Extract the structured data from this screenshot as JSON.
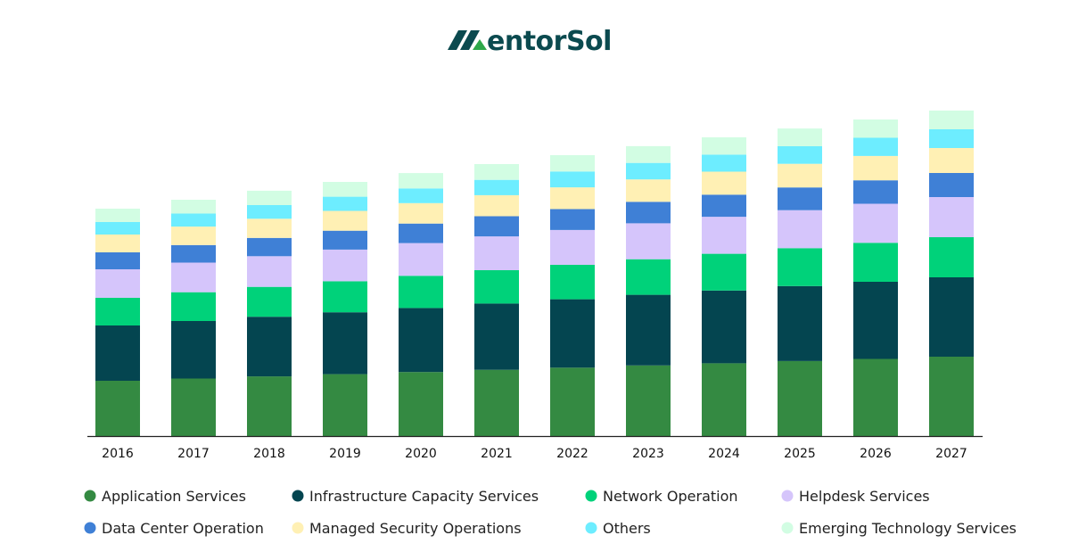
{
  "logo": {
    "text": "MentorSol",
    "display": "entorSol",
    "accent": "#2ea84a",
    "primary": "#0b4a4f"
  },
  "chart_data": {
    "type": "bar",
    "stacked": true,
    "title": "",
    "xlabel": "",
    "ylabel": "",
    "grid": false,
    "legend_position": "bottom",
    "categories": [
      "2016",
      "2017",
      "2018",
      "2019",
      "2020",
      "2021",
      "2022",
      "2023",
      "2024",
      "2025",
      "2026",
      "2027"
    ],
    "series": [
      {
        "name": "Application Services",
        "color": "#348A42",
        "values": [
          62,
          64.5,
          66.9,
          69.4,
          71.8,
          74.3,
          76.7,
          79.2,
          81.6,
          84.1,
          86.5,
          89
        ]
      },
      {
        "name": "Infrastructure Capacity Services",
        "color": "#044550",
        "values": [
          62,
          64.5,
          66.9,
          69.4,
          71.8,
          74.3,
          76.7,
          79.2,
          81.6,
          84.1,
          86.5,
          89
        ]
      },
      {
        "name": "Network Operation",
        "color": "#00D27A",
        "values": [
          31,
          32.3,
          33.5,
          34.8,
          36.1,
          37.4,
          38.6,
          39.9,
          41.2,
          42.5,
          43.7,
          45
        ]
      },
      {
        "name": "Helpdesk Services",
        "color": "#D5C5FB",
        "values": [
          32,
          33.2,
          34.4,
          35.5,
          36.7,
          37.9,
          39.1,
          40.3,
          41.5,
          42.6,
          43.8,
          45
        ]
      },
      {
        "name": "Data Center Operation",
        "color": "#3F80D6",
        "values": [
          19,
          19.7,
          20.5,
          21.2,
          21.9,
          22.6,
          23.4,
          24.1,
          24.8,
          25.5,
          26.3,
          27
        ]
      },
      {
        "name": "Managed Security Operations",
        "color": "#FFF0B4",
        "values": [
          20,
          20.7,
          21.5,
          22.2,
          22.9,
          23.6,
          24.4,
          25.1,
          25.8,
          26.5,
          27.3,
          28
        ]
      },
      {
        "name": "Others",
        "color": "#6DEDFF",
        "values": [
          14,
          14.6,
          15.3,
          15.9,
          16.5,
          17.2,
          17.8,
          18.5,
          19.1,
          19.7,
          20.4,
          21
        ]
      },
      {
        "name": "Emerging Technology Services",
        "color": "#D2FDE3",
        "values": [
          15,
          15.5,
          16.1,
          16.6,
          17.2,
          17.7,
          18.3,
          18.8,
          19.4,
          19.9,
          20.5,
          21
        ]
      }
    ]
  }
}
